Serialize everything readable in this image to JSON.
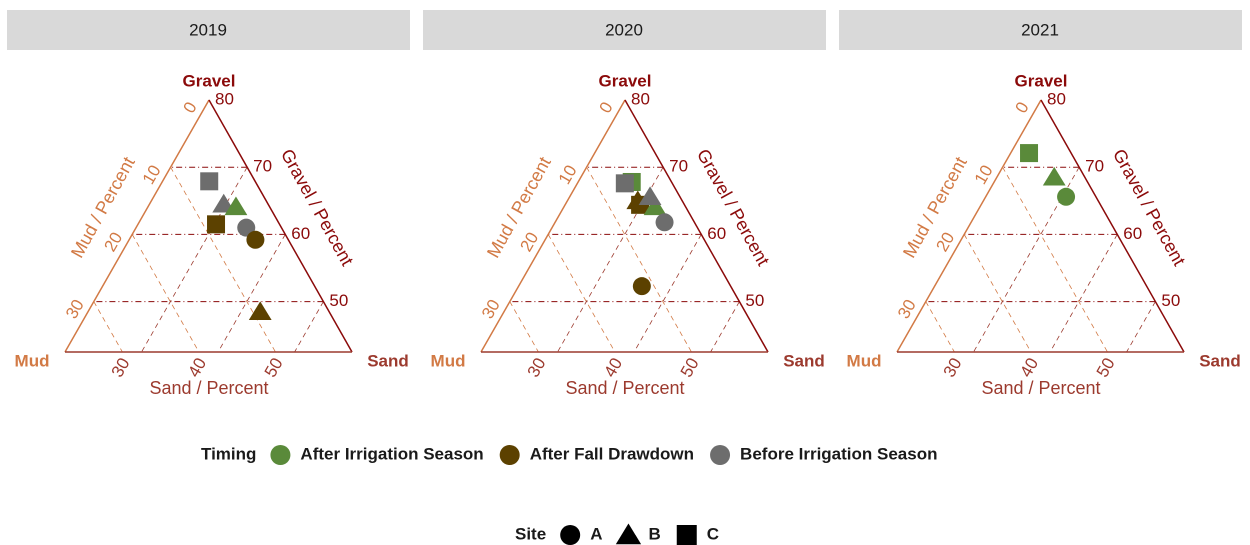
{
  "chart_data": {
    "type": "ternary",
    "vertex_labels": {
      "gravel": "Gravel",
      "sand": "Sand",
      "mud": "Mud"
    },
    "axis_titles": {
      "gravel": "Gravel / Percent",
      "sand": "Sand / Percent",
      "mud": "Mud / Percent"
    },
    "gravel_lim": [
      42.5,
      80
    ],
    "sand_lim": [
      20,
      57.5
    ],
    "mud_lim": [
      0,
      37.5
    ],
    "gravel_ticks": [
      50,
      60,
      70,
      80
    ],
    "sand_ticks": [
      30,
      40,
      50
    ],
    "mud_ticks": [
      0,
      10,
      20,
      30
    ],
    "grid": true,
    "legend_timing": {
      "title": "Timing",
      "items": [
        {
          "name": "After Irrigation Season",
          "color": "#5a8a3a"
        },
        {
          "name": "After Fall Drawdown",
          "color": "#5c4100"
        },
        {
          "name": "Before Irrigation Season",
          "color": "#6d6d6d"
        }
      ]
    },
    "legend_site": {
      "title": "Site",
      "items": [
        {
          "name": "A",
          "shape": "circle"
        },
        {
          "name": "B",
          "shape": "triangle"
        },
        {
          "name": "C",
          "shape": "square"
        }
      ]
    },
    "panels": [
      {
        "title": "2019",
        "points": [
          {
            "gravel": 67.9,
            "sand": 26.1,
            "mud": 6.0,
            "timing": "Before Irrigation Season",
            "site": "C"
          },
          {
            "gravel": 64.5,
            "sand": 29.7,
            "mud": 5.8,
            "timing": "Before Irrigation Season",
            "site": "B"
          },
          {
            "gravel": 64.1,
            "sand": 31.5,
            "mud": 4.4,
            "timing": "After Irrigation Season",
            "site": "B"
          },
          {
            "gravel": 61.5,
            "sand": 30.2,
            "mud": 8.3,
            "timing": "After Fall Drawdown",
            "site": "C"
          },
          {
            "gravel": 61.0,
            "sand": 34.4,
            "mud": 4.6,
            "timing": "Before Irrigation Season",
            "site": "A"
          },
          {
            "gravel": 59.2,
            "sand": 36.5,
            "mud": 4.3,
            "timing": "After Fall Drawdown",
            "site": "A"
          },
          {
            "gravel": 48.5,
            "sand": 42.5,
            "mud": 9.0,
            "timing": "After Fall Drawdown",
            "site": "B"
          }
        ]
      },
      {
        "title": "2020",
        "points": [
          {
            "gravel": 67.8,
            "sand": 27.0,
            "mud": 5.2,
            "timing": "After Irrigation Season",
            "site": "C"
          },
          {
            "gravel": 67.6,
            "sand": 26.2,
            "mud": 6.2,
            "timing": "Before Irrigation Season",
            "site": "C"
          },
          {
            "gravel": 65.0,
            "sand": 29.2,
            "mud": 5.8,
            "timing": "After Fall Drawdown",
            "site": "B"
          },
          {
            "gravel": 64.4,
            "sand": 29.8,
            "mud": 5.8,
            "timing": "After Fall Drawdown",
            "site": "C"
          },
          {
            "gravel": 64.1,
            "sand": 31.9,
            "mud": 4.0,
            "timing": "After Irrigation Season",
            "site": "B"
          },
          {
            "gravel": 65.6,
            "sand": 30.5,
            "mud": 3.9,
            "timing": "Before Irrigation Season",
            "site": "B"
          },
          {
            "gravel": 61.8,
            "sand": 34.3,
            "mud": 3.9,
            "timing": "Before Irrigation Season",
            "site": "A"
          },
          {
            "gravel": 52.3,
            "sand": 36.1,
            "mud": 11.6,
            "timing": "After Fall Drawdown",
            "site": "A"
          }
        ]
      },
      {
        "title": "2021",
        "points": [
          {
            "gravel": 72.1,
            "sand": 22.4,
            "mud": 5.5,
            "timing": "After Irrigation Season",
            "site": "C"
          },
          {
            "gravel": 68.5,
            "sand": 27.5,
            "mud": 4.0,
            "timing": "After Irrigation Season",
            "site": "B"
          },
          {
            "gravel": 65.6,
            "sand": 30.5,
            "mud": 3.9,
            "timing": "After Irrigation Season",
            "site": "A"
          }
        ]
      }
    ]
  }
}
